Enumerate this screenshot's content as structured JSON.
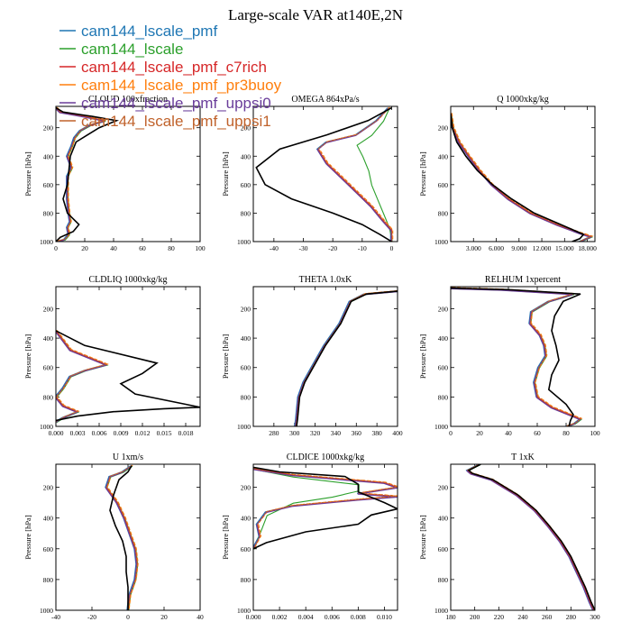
{
  "title": "Large-scale VAR at140E,2N",
  "ylabel": "Pressure [hPa]",
  "legend": [
    {
      "name": "cam144_lscale_pmf",
      "color": "#1f77b4"
    },
    {
      "name": "cam144_lscale",
      "color": "#2ca02c"
    },
    {
      "name": "cam144_lscale_pmf_c7rich",
      "color": "#d62728"
    },
    {
      "name": "cam144_lscale_pmf_pr3buoy",
      "color": "#ff7f0e"
    },
    {
      "name": "cam144_lscale_pmf_uppsi0",
      "color": "#6a3d9a"
    },
    {
      "name": "cam144_lscale_pmf_uppsi1",
      "color": "#c0622b"
    }
  ],
  "reference_color": "#000000",
  "chart_data": [
    {
      "type": "line",
      "title": "CLOUD  100xfraction",
      "xlim": [
        0,
        100
      ],
      "xticks": [
        0,
        20,
        40,
        60,
        80,
        100
      ],
      "xticklabels": [
        "0",
        "20",
        "40",
        "60",
        "80",
        "100"
      ],
      "ylim": [
        1000,
        50
      ],
      "yticks": [
        200,
        400,
        600,
        800,
        1000
      ],
      "reference": [
        [
          0,
          60
        ],
        [
          5,
          90
        ],
        [
          25,
          120
        ],
        [
          42,
          150
        ],
        [
          30,
          200
        ],
        [
          22,
          250
        ],
        [
          14,
          300
        ],
        [
          10,
          400
        ],
        [
          9,
          500
        ],
        [
          8,
          600
        ],
        [
          5,
          700
        ],
        [
          8,
          800
        ],
        [
          16,
          880
        ],
        [
          12,
          930
        ],
        [
          3,
          970
        ],
        [
          0,
          1000
        ]
      ],
      "model": [
        [
          0,
          60
        ],
        [
          3,
          90
        ],
        [
          20,
          120
        ],
        [
          34,
          150
        ],
        [
          24,
          180
        ],
        [
          17,
          220
        ],
        [
          13,
          270
        ],
        [
          11,
          330
        ],
        [
          8,
          400
        ],
        [
          11,
          480
        ],
        [
          8,
          540
        ],
        [
          8,
          700
        ],
        [
          9,
          800
        ],
        [
          10,
          860
        ],
        [
          8,
          900
        ],
        [
          9,
          950
        ],
        [
          6,
          985
        ],
        [
          0,
          1000
        ]
      ]
    },
    {
      "type": "line",
      "title": "OMEGA  864xPa/s",
      "xlim": [
        -47,
        2
      ],
      "xticks": [
        -40,
        -30,
        -20,
        -10,
        0
      ],
      "xticklabels": [
        "-40",
        "-30",
        "-20",
        "-10",
        "0"
      ],
      "ylim": [
        1000,
        50
      ],
      "yticks": [
        200,
        400,
        600,
        800,
        1000
      ],
      "reference": [
        [
          0,
          60
        ],
        [
          -8,
          150
        ],
        [
          -22,
          250
        ],
        [
          -38,
          350
        ],
        [
          -46,
          480
        ],
        [
          -43,
          600
        ],
        [
          -34,
          700
        ],
        [
          -20,
          800
        ],
        [
          -10,
          880
        ],
        [
          -4,
          950
        ],
        [
          0,
          1000
        ]
      ],
      "model": [
        [
          -1,
          60
        ],
        [
          -5,
          150
        ],
        [
          -12,
          250
        ],
        [
          -22,
          300
        ],
        [
          -25,
          350
        ],
        [
          -22,
          450
        ],
        [
          -17,
          550
        ],
        [
          -12,
          650
        ],
        [
          -7,
          750
        ],
        [
          -3,
          850
        ],
        [
          0,
          920
        ],
        [
          0,
          1000
        ]
      ],
      "alt": [
        [
          -1,
          60
        ],
        [
          -3,
          150
        ],
        [
          -7,
          250
        ],
        [
          -12,
          320
        ],
        [
          -10,
          400
        ],
        [
          -8,
          500
        ],
        [
          -7,
          600
        ],
        [
          -5,
          700
        ],
        [
          -3,
          800
        ],
        [
          -1,
          900
        ],
        [
          0,
          1000
        ]
      ]
    },
    {
      "type": "line",
      "title": "Q  1000xkg/kg",
      "xlim": [
        0,
        19000
      ],
      "xticks": [
        3000,
        6000,
        9000,
        12000,
        15000,
        18000
      ],
      "xticklabels": [
        "3.000",
        "6.000",
        "9.000",
        "12.000",
        "15.000",
        "18.000"
      ],
      "ylim": [
        1000,
        50
      ],
      "yticks": [
        200,
        400,
        600,
        800,
        1000
      ],
      "reference": [
        [
          0,
          100
        ],
        [
          200,
          200
        ],
        [
          800,
          300
        ],
        [
          2000,
          400
        ],
        [
          3500,
          500
        ],
        [
          5500,
          600
        ],
        [
          8000,
          700
        ],
        [
          11000,
          800
        ],
        [
          14500,
          880
        ],
        [
          17500,
          950
        ],
        [
          17000,
          980
        ],
        [
          16000,
          1000
        ]
      ],
      "model": [
        [
          0,
          100
        ],
        [
          300,
          200
        ],
        [
          1100,
          300
        ],
        [
          2400,
          400
        ],
        [
          3800,
          500
        ],
        [
          5400,
          600
        ],
        [
          7600,
          700
        ],
        [
          10500,
          800
        ],
        [
          14000,
          880
        ],
        [
          17000,
          940
        ],
        [
          18500,
          965
        ],
        [
          17000,
          1000
        ]
      ]
    },
    {
      "type": "line",
      "title": "CLDLIQ  1000xkg/kg",
      "xlim": [
        0,
        0.02
      ],
      "xticks": [
        0,
        0.003,
        0.006,
        0.009,
        0.012,
        0.015,
        0.018
      ],
      "xticklabels": [
        "0.000",
        "0.003",
        "0.006",
        "0.009",
        "0.012",
        "0.015",
        "0.018"
      ],
      "ylim": [
        1000,
        50
      ],
      "yticks": [
        200,
        400,
        600,
        800,
        1000
      ],
      "reference": [
        [
          0,
          350
        ],
        [
          0.004,
          450
        ],
        [
          0.014,
          570
        ],
        [
          0.012,
          640
        ],
        [
          0.009,
          710
        ],
        [
          0.011,
          780
        ],
        [
          0.018,
          850
        ],
        [
          0.02,
          870
        ],
        [
          0.015,
          880
        ],
        [
          0.008,
          900
        ],
        [
          0.003,
          930
        ],
        [
          0,
          960
        ]
      ],
      "model": [
        [
          0,
          350
        ],
        [
          0.002,
          480
        ],
        [
          0.006,
          560
        ],
        [
          0.007,
          580
        ],
        [
          0.004,
          620
        ],
        [
          0.002,
          660
        ],
        [
          0.001,
          740
        ],
        [
          0,
          800
        ],
        [
          0.001,
          860
        ],
        [
          0.003,
          900
        ],
        [
          0.001,
          940
        ],
        [
          0,
          970
        ]
      ]
    },
    {
      "type": "line",
      "title": "THETA  1.0xK",
      "xlim": [
        260,
        400
      ],
      "xticks": [
        280,
        300,
        320,
        340,
        360,
        380,
        400
      ],
      "xticklabels": [
        "280",
        "300",
        "320",
        "340",
        "360",
        "380",
        "400"
      ],
      "ylim": [
        1000,
        50
      ],
      "yticks": [
        200,
        400,
        600,
        800,
        1000
      ],
      "reference": [
        [
          302,
          1000
        ],
        [
          303,
          950
        ],
        [
          305,
          800
        ],
        [
          310,
          700
        ],
        [
          318,
          600
        ],
        [
          330,
          450
        ],
        [
          345,
          300
        ],
        [
          355,
          150
        ],
        [
          370,
          100
        ],
        [
          400,
          80
        ]
      ],
      "model": [
        [
          301,
          1000
        ],
        [
          302,
          950
        ],
        [
          304,
          800
        ],
        [
          309,
          700
        ],
        [
          317,
          600
        ],
        [
          329,
          450
        ],
        [
          344,
          300
        ],
        [
          354,
          150
        ],
        [
          368,
          100
        ],
        [
          400,
          80
        ]
      ]
    },
    {
      "type": "line",
      "title": "RELHUM  1xpercent",
      "xlim": [
        0,
        100
      ],
      "xticks": [
        0,
        20,
        40,
        60,
        80,
        100
      ],
      "xticklabels": [
        "0",
        "20",
        "40",
        "60",
        "80",
        "100"
      ],
      "ylim": [
        1000,
        50
      ],
      "yticks": [
        200,
        400,
        600,
        800,
        1000
      ],
      "reference": [
        [
          0,
          60
        ],
        [
          40,
          70
        ],
        [
          90,
          100
        ],
        [
          78,
          150
        ],
        [
          72,
          250
        ],
        [
          70,
          350
        ],
        [
          73,
          450
        ],
        [
          75,
          550
        ],
        [
          70,
          650
        ],
        [
          68,
          750
        ],
        [
          80,
          850
        ],
        [
          85,
          920
        ],
        [
          83,
          960
        ],
        [
          82,
          1000
        ]
      ],
      "model": [
        [
          0,
          60
        ],
        [
          35,
          70
        ],
        [
          85,
          100
        ],
        [
          68,
          150
        ],
        [
          56,
          220
        ],
        [
          55,
          300
        ],
        [
          62,
          380
        ],
        [
          65,
          450
        ],
        [
          66,
          520
        ],
        [
          61,
          600
        ],
        [
          58,
          700
        ],
        [
          60,
          800
        ],
        [
          70,
          870
        ],
        [
          85,
          930
        ],
        [
          90,
          950
        ],
        [
          86,
          980
        ],
        [
          80,
          1000
        ]
      ]
    },
    {
      "type": "line",
      "title": "U  1xm/s",
      "xlim": [
        -40,
        40
      ],
      "xticks": [
        -40,
        -20,
        0,
        20,
        40
      ],
      "xticklabels": [
        "-40",
        "-20",
        "0",
        "20",
        "40"
      ],
      "ylim": [
        1000,
        50
      ],
      "yticks": [
        200,
        400,
        600,
        800,
        1000
      ],
      "reference": [
        [
          2,
          60
        ],
        [
          0,
          100
        ],
        [
          -5,
          150
        ],
        [
          -8,
          250
        ],
        [
          -10,
          350
        ],
        [
          -7,
          450
        ],
        [
          -3,
          550
        ],
        [
          -1,
          650
        ],
        [
          -1,
          750
        ],
        [
          0,
          850
        ],
        [
          0,
          950
        ],
        [
          0,
          1000
        ]
      ],
      "model": [
        [
          2,
          60
        ],
        [
          -3,
          100
        ],
        [
          -10,
          130
        ],
        [
          -12,
          200
        ],
        [
          -6,
          300
        ],
        [
          -2,
          400
        ],
        [
          1,
          500
        ],
        [
          4,
          600
        ],
        [
          5,
          700
        ],
        [
          4,
          800
        ],
        [
          1,
          900
        ],
        [
          0,
          1000
        ]
      ]
    },
    {
      "type": "line",
      "title": "CLDICE  1000xkg/kg",
      "xlim": [
        0,
        0.011
      ],
      "xticks": [
        0,
        0.002,
        0.004,
        0.006,
        0.008,
        0.01
      ],
      "xticklabels": [
        "0.000",
        "0.002",
        "0.004",
        "0.006",
        "0.008",
        "0.010"
      ],
      "ylim": [
        1000,
        50
      ],
      "yticks": [
        200,
        400,
        600,
        800,
        1000
      ],
      "reference": [
        [
          0,
          70
        ],
        [
          0.002,
          100
        ],
        [
          0.007,
          130
        ],
        [
          0.008,
          180
        ],
        [
          0.008,
          230
        ],
        [
          0.01,
          300
        ],
        [
          0.011,
          340
        ],
        [
          0.009,
          380
        ],
        [
          0.008,
          440
        ],
        [
          0.004,
          490
        ],
        [
          0.001,
          560
        ],
        [
          0,
          600
        ]
      ],
      "model": [
        [
          0,
          80
        ],
        [
          0.003,
          120
        ],
        [
          0.01,
          170
        ],
        [
          0.011,
          200
        ],
        [
          0.008,
          240
        ],
        [
          0.011,
          260
        ],
        [
          0.008,
          280
        ],
        [
          0.003,
          320
        ],
        [
          0.001,
          360
        ],
        [
          0.0003,
          440
        ],
        [
          0.0005,
          520
        ],
        [
          0,
          600
        ]
      ],
      "alt": [
        [
          0,
          80
        ],
        [
          0.003,
          130
        ],
        [
          0.008,
          180
        ],
        [
          0.008,
          220
        ],
        [
          0.006,
          260
        ],
        [
          0.003,
          300
        ],
        [
          0.001,
          380
        ],
        [
          0,
          600
        ]
      ]
    },
    {
      "type": "line",
      "title": "T  1xK",
      "xlim": [
        180,
        300
      ],
      "xticks": [
        180,
        200,
        220,
        240,
        260,
        280,
        300
      ],
      "xticklabels": [
        "180",
        "200",
        "220",
        "240",
        "260",
        "280",
        "300"
      ],
      "ylim": [
        1000,
        50
      ],
      "yticks": [
        200,
        400,
        600,
        800,
        1000
      ],
      "reference": [
        [
          205,
          50
        ],
        [
          195,
          90
        ],
        [
          198,
          110
        ],
        [
          215,
          150
        ],
        [
          236,
          250
        ],
        [
          251,
          350
        ],
        [
          262,
          450
        ],
        [
          272,
          550
        ],
        [
          280,
          650
        ],
        [
          286,
          750
        ],
        [
          292,
          850
        ],
        [
          297,
          950
        ],
        [
          300,
          1000
        ]
      ],
      "model": [
        [
          204,
          50
        ],
        [
          194,
          90
        ],
        [
          197,
          110
        ],
        [
          214,
          150
        ],
        [
          235,
          250
        ],
        [
          250,
          350
        ],
        [
          261,
          450
        ],
        [
          271,
          550
        ],
        [
          279,
          650
        ],
        [
          285,
          750
        ],
        [
          291,
          850
        ],
        [
          296,
          950
        ],
        [
          299,
          1000
        ]
      ]
    }
  ]
}
